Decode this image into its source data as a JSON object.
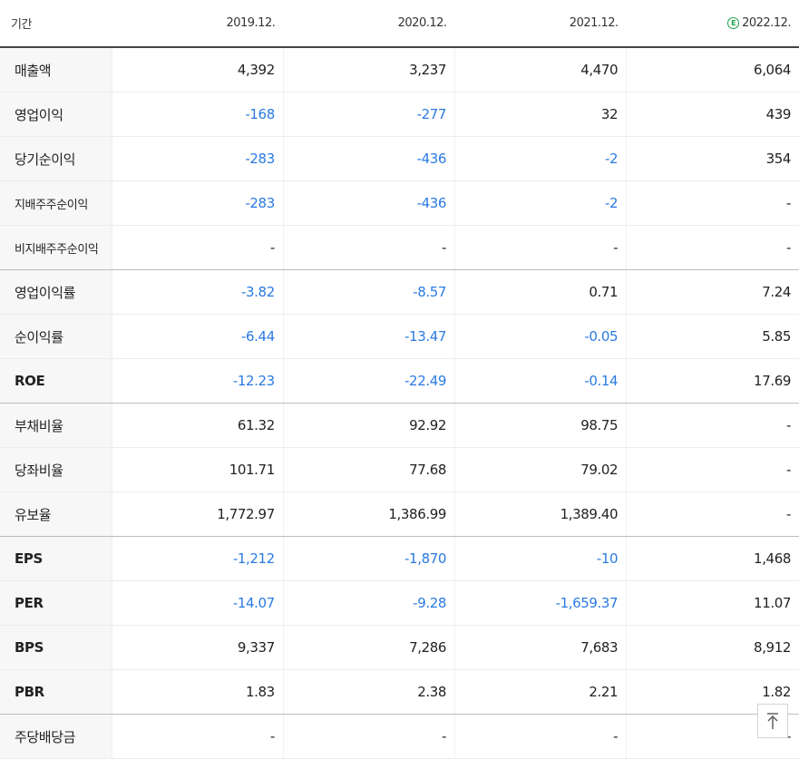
{
  "header": {
    "label": "기간",
    "periods": [
      "2019.12.",
      "2020.12.",
      "2021.12.",
      "2022.12."
    ],
    "estimate_icon_text": "E",
    "estimate_color": "#19a34a"
  },
  "colors": {
    "negative": "#2a7ae2",
    "text": "#222222"
  },
  "rows": [
    {
      "label": "매출액",
      "values": [
        "4,392",
        "3,237",
        "4,470",
        "6,064"
      ]
    },
    {
      "label": "영업이익",
      "values": [
        "-168",
        "-277",
        "32",
        "439"
      ]
    },
    {
      "label": "당기순이익",
      "values": [
        "-283",
        "-436",
        "-2",
        "354"
      ]
    },
    {
      "label": "지배주주순이익",
      "values": [
        "-283",
        "-436",
        "-2",
        "-"
      ]
    },
    {
      "label": "비지배주주순이익",
      "values": [
        "-",
        "-",
        "-",
        "-"
      ]
    },
    {
      "label": "영업이익률",
      "values": [
        "-3.82",
        "-8.57",
        "0.71",
        "7.24"
      ]
    },
    {
      "label": "순이익률",
      "values": [
        "-6.44",
        "-13.47",
        "-0.05",
        "5.85"
      ]
    },
    {
      "label": "ROE",
      "values": [
        "-12.23",
        "-22.49",
        "-0.14",
        "17.69"
      ]
    },
    {
      "label": "부채비율",
      "values": [
        "61.32",
        "92.92",
        "98.75",
        "-"
      ]
    },
    {
      "label": "당좌비율",
      "values": [
        "101.71",
        "77.68",
        "79.02",
        "-"
      ]
    },
    {
      "label": "유보율",
      "values": [
        "1,772.97",
        "1,386.99",
        "1,389.40",
        "-"
      ]
    },
    {
      "label": "EPS",
      "values": [
        "-1,212",
        "-1,870",
        "-10",
        "1,468"
      ]
    },
    {
      "label": "PER",
      "values": [
        "-14.07",
        "-9.28",
        "-1,659.37",
        "11.07"
      ]
    },
    {
      "label": "BPS",
      "values": [
        "9,337",
        "7,286",
        "7,683",
        "8,912"
      ]
    },
    {
      "label": "PBR",
      "values": [
        "1.83",
        "2.38",
        "2.21",
        "1.82"
      ]
    },
    {
      "label": "주당배당금",
      "values": [
        "-",
        "-",
        "-",
        "-"
      ]
    }
  ],
  "scroll_top_icon": "arrow-up-to-top-icon"
}
